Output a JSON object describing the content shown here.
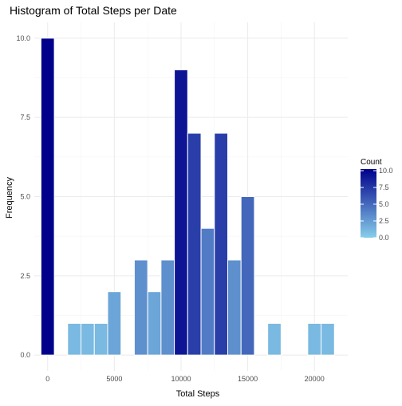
{
  "chart_data": {
    "type": "bar",
    "title": "Histogram of Total Steps per Date",
    "xlabel": "Total Steps",
    "ylabel": "Frequency",
    "xlim": [
      -1000,
      22500
    ],
    "ylim": [
      -0.5,
      10.5
    ],
    "x_ticks": [
      0,
      5000,
      10000,
      15000,
      20000
    ],
    "x_tick_labels": [
      "0",
      "5000",
      "10000",
      "15000",
      "20000"
    ],
    "y_ticks": [
      0,
      2.5,
      5,
      7.5,
      10
    ],
    "y_tick_labels": [
      "0.0",
      "2.5",
      "5.0",
      "7.5",
      "10.0"
    ],
    "bin_width": 1000,
    "bins": [
      {
        "x": 0,
        "count": 10
      },
      {
        "x": 2000,
        "count": 1
      },
      {
        "x": 3000,
        "count": 1
      },
      {
        "x": 4000,
        "count": 1
      },
      {
        "x": 5000,
        "count": 2
      },
      {
        "x": 7000,
        "count": 3
      },
      {
        "x": 8000,
        "count": 2
      },
      {
        "x": 9000,
        "count": 3
      },
      {
        "x": 10000,
        "count": 9
      },
      {
        "x": 11000,
        "count": 7
      },
      {
        "x": 12000,
        "count": 4
      },
      {
        "x": 13000,
        "count": 7
      },
      {
        "x": 14000,
        "count": 3
      },
      {
        "x": 15000,
        "count": 5
      },
      {
        "x": 17000,
        "count": 1
      },
      {
        "x": 20000,
        "count": 1
      },
      {
        "x": 21000,
        "count": 1
      }
    ],
    "grid": true,
    "legend": {
      "title": "Count",
      "placement": "right",
      "breaks": [
        10,
        7.5,
        5,
        2.5,
        0
      ],
      "break_labels": [
        "10.0",
        "7.5",
        "5.0",
        "2.5",
        "0.0"
      ],
      "low_color": "#87CEEB",
      "high_color": "#00008B"
    }
  }
}
